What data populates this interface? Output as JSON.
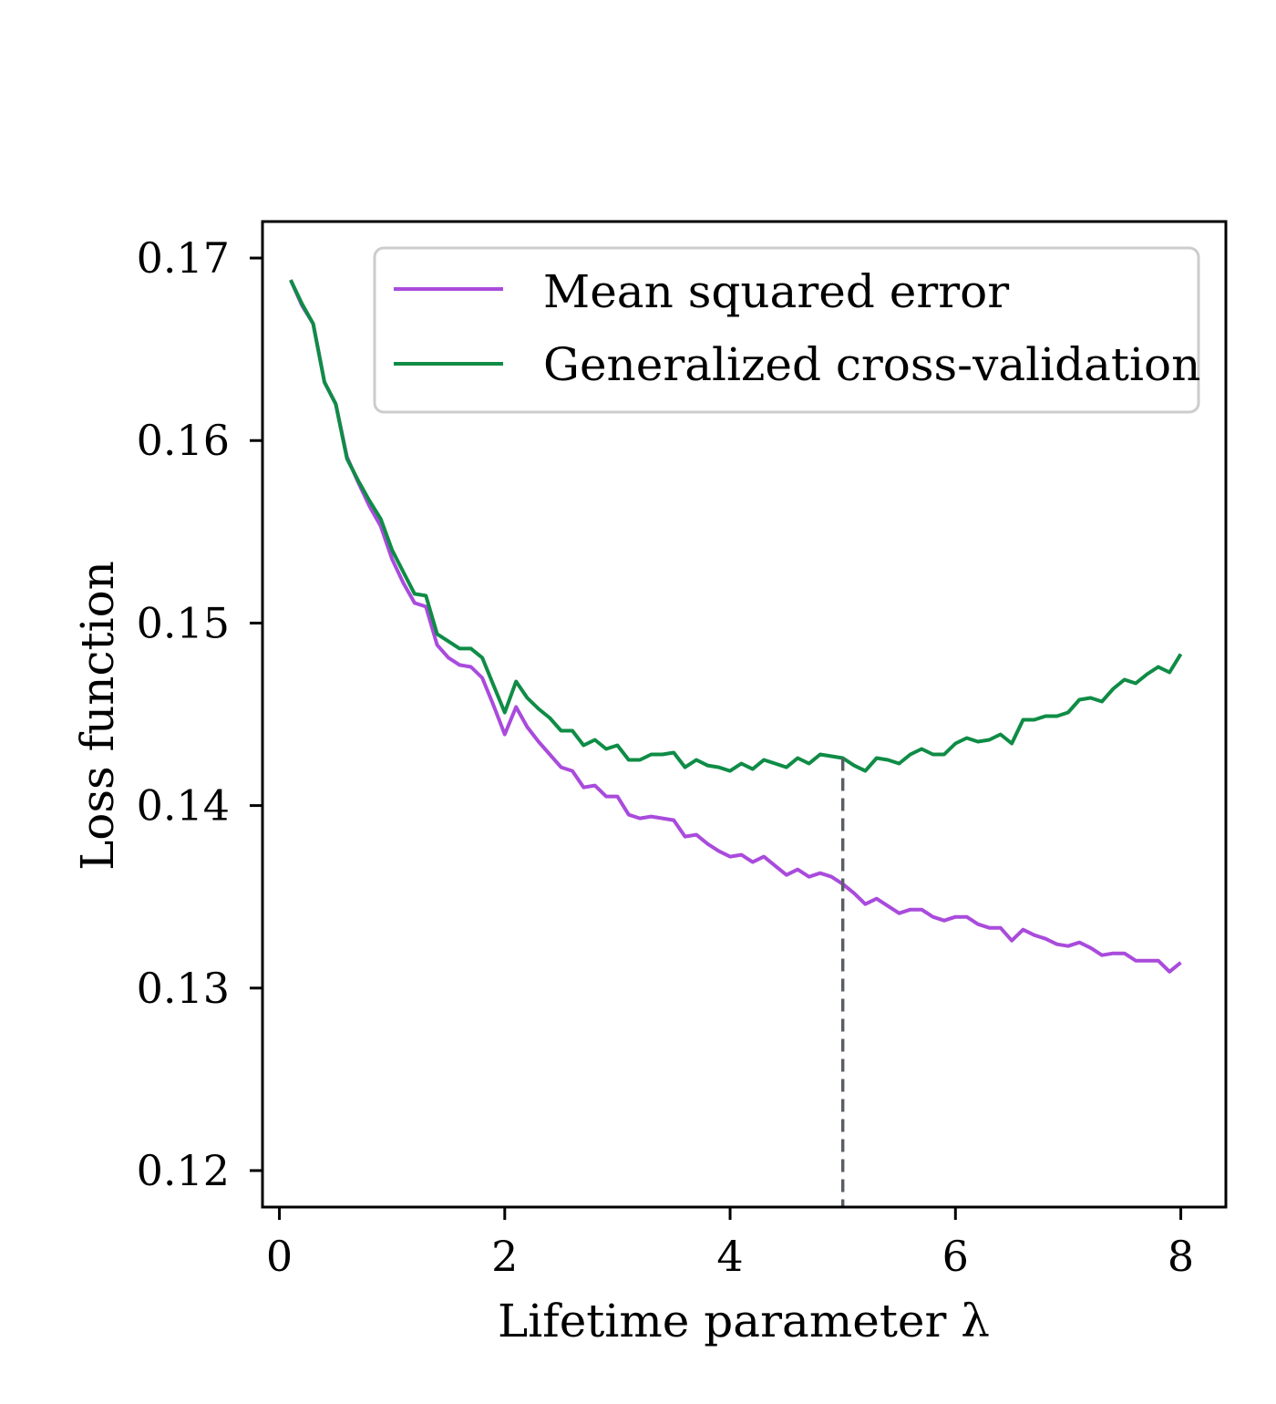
{
  "chart_data": {
    "type": "line",
    "xlabel": "Lifetime parameter λ",
    "ylabel": "Loss function",
    "xlim": [
      -0.15,
      8.4
    ],
    "ylim": [
      0.118,
      0.172
    ],
    "xticks": [
      0,
      2,
      4,
      6,
      8
    ],
    "xtick_labels": [
      "0",
      "2",
      "4",
      "6",
      "8"
    ],
    "yticks": [
      0.12,
      0.13,
      0.14,
      0.15,
      0.16,
      0.17
    ],
    "ytick_labels": [
      "0.12",
      "0.13",
      "0.14",
      "0.15",
      "0.16",
      "0.17"
    ],
    "grid": false,
    "legend_position": "top-right",
    "vline": {
      "x": 5.0,
      "style": "dashed",
      "color": "#5a5d65"
    },
    "x": [
      0.1,
      0.2,
      0.3,
      0.4,
      0.5,
      0.6,
      0.7,
      0.8,
      0.9,
      1.0,
      1.1,
      1.2,
      1.3,
      1.4,
      1.5,
      1.6,
      1.7,
      1.8,
      1.9,
      2.0,
      2.1,
      2.2,
      2.3,
      2.4,
      2.5,
      2.6,
      2.7,
      2.8,
      2.9,
      3.0,
      3.1,
      3.2,
      3.3,
      3.4,
      3.5,
      3.6,
      3.7,
      3.8,
      3.9,
      4.0,
      4.1,
      4.2,
      4.3,
      4.4,
      4.5,
      4.6,
      4.7,
      4.8,
      4.9,
      5.0,
      5.1,
      5.2,
      5.3,
      5.4,
      5.5,
      5.6,
      5.7,
      5.8,
      5.9,
      6.0,
      6.1,
      6.2,
      6.3,
      6.4,
      6.5,
      6.6,
      6.7,
      6.8,
      6.9,
      7.0,
      7.1,
      7.2,
      7.3,
      7.4,
      7.5,
      7.6,
      7.7,
      7.8,
      7.9,
      8.0
    ],
    "series": [
      {
        "name": "Mean squared error",
        "color": "#a94bdc",
        "values": [
          0.1688,
          0.1674,
          0.1664,
          0.1632,
          0.162,
          0.1591,
          0.1577,
          0.1564,
          0.1553,
          0.1535,
          0.1522,
          0.1511,
          0.1509,
          0.1488,
          0.1481,
          0.1477,
          0.1476,
          0.147,
          0.1455,
          0.1439,
          0.1454,
          0.1443,
          0.1435,
          0.1428,
          0.1421,
          0.1419,
          0.141,
          0.1411,
          0.1405,
          0.1405,
          0.1395,
          0.1393,
          0.1394,
          0.1393,
          0.1392,
          0.1383,
          0.1384,
          0.1379,
          0.1375,
          0.1372,
          0.1373,
          0.1369,
          0.1372,
          0.1367,
          0.1362,
          0.1365,
          0.1361,
          0.1363,
          0.1361,
          0.1357,
          0.1352,
          0.1346,
          0.1349,
          0.1345,
          0.1341,
          0.1343,
          0.1343,
          0.1339,
          0.1337,
          0.1339,
          0.1339,
          0.1335,
          0.1333,
          0.1333,
          0.1326,
          0.1332,
          0.1329,
          0.1327,
          0.1324,
          0.1323,
          0.1325,
          0.1322,
          0.1318,
          0.1319,
          0.1319,
          0.1315,
          0.1315,
          0.1315,
          0.1309,
          0.1314
        ]
      },
      {
        "name": "Generalized cross-validation",
        "color": "#0f8c46",
        "values": [
          0.1688,
          0.1675,
          0.1664,
          0.1632,
          0.162,
          0.159,
          0.1578,
          0.1567,
          0.1557,
          0.154,
          0.1528,
          0.1516,
          0.1515,
          0.1494,
          0.149,
          0.1486,
          0.1486,
          0.1481,
          0.1466,
          0.1451,
          0.1468,
          0.1459,
          0.1453,
          0.1448,
          0.1441,
          0.1441,
          0.1433,
          0.1436,
          0.1431,
          0.1433,
          0.1425,
          0.1425,
          0.1428,
          0.1428,
          0.1429,
          0.1421,
          0.1425,
          0.1422,
          0.1421,
          0.1419,
          0.1423,
          0.142,
          0.1425,
          0.1423,
          0.1421,
          0.1426,
          0.1423,
          0.1428,
          0.1427,
          0.1426,
          0.1422,
          0.1419,
          0.1426,
          0.1425,
          0.1423,
          0.1428,
          0.1431,
          0.1428,
          0.1428,
          0.1434,
          0.1437,
          0.1435,
          0.1436,
          0.1439,
          0.1434,
          0.1447,
          0.1447,
          0.1449,
          0.1449,
          0.1451,
          0.1458,
          0.1459,
          0.1457,
          0.1464,
          0.1469,
          0.1467,
          0.1472,
          0.1476,
          0.1473,
          0.1483
        ]
      }
    ]
  }
}
